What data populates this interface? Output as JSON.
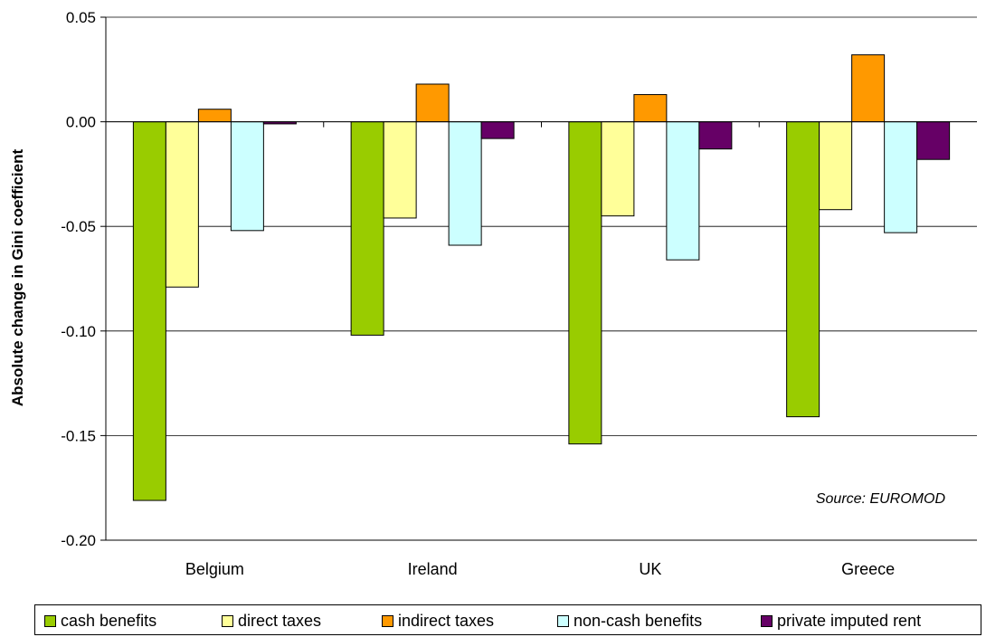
{
  "chart_data": {
    "type": "bar",
    "categories": [
      "Belgium",
      "Ireland",
      "UK",
      "Greece"
    ],
    "series": [
      {
        "name": "cash benefits",
        "color": "#99cc00",
        "values": [
          -0.181,
          -0.102,
          -0.154,
          -0.141
        ]
      },
      {
        "name": "direct taxes",
        "color": "#ffff99",
        "values": [
          -0.079,
          -0.046,
          -0.045,
          -0.042
        ]
      },
      {
        "name": "indirect taxes",
        "color": "#ff9900",
        "values": [
          0.006,
          0.018,
          0.013,
          0.032
        ]
      },
      {
        "name": "non-cash benefits",
        "color": "#ccffff",
        "values": [
          -0.052,
          -0.059,
          -0.066,
          -0.053
        ]
      },
      {
        "name": "private imputed rent",
        "color": "#660066",
        "values": [
          -0.001,
          -0.008,
          -0.013,
          -0.018
        ]
      }
    ],
    "ylabel": "Absolute change in Gini coefficient",
    "ylim": [
      -0.2,
      0.05
    ],
    "yticks": [
      "0.05",
      "0.00",
      "-0.05",
      "-0.10",
      "-0.15",
      "-0.20"
    ],
    "ytick_values": [
      0.05,
      0.0,
      -0.05,
      -0.1,
      -0.15,
      -0.2
    ],
    "grid": true,
    "legend_position": "bottom",
    "annotation": "Source: EUROMOD"
  }
}
